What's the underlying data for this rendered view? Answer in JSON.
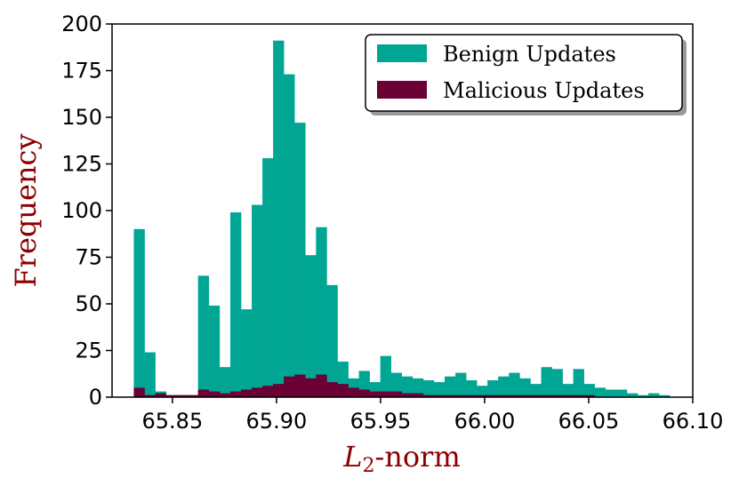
{
  "chart_data": {
    "type": "bar",
    "title": "",
    "xlabel": "L",
    "xlabel_subscript": "2",
    "xlabel_suffix": "-norm",
    "ylabel": "Frequency",
    "xlim": [
      65.821,
      66.1
    ],
    "ylim": [
      0,
      200
    ],
    "xticks": [
      65.85,
      65.9,
      65.95,
      66.0,
      66.05,
      66.1
    ],
    "xtick_labels": [
      "65.85",
      "65.90",
      "65.95",
      "66.00",
      "66.05",
      "66.10"
    ],
    "yticks": [
      0,
      25,
      50,
      75,
      100,
      125,
      150,
      175,
      200
    ],
    "ytick_labels": [
      "0",
      "25",
      "50",
      "75",
      "100",
      "125",
      "150",
      "175",
      "200"
    ],
    "bin_start": 65.8315,
    "bin_width": 0.00515,
    "legend_position": "top-right",
    "grid": false,
    "series": [
      {
        "name": "Benign Updates",
        "color": "#00a693",
        "values": [
          90,
          24,
          3,
          1,
          1,
          1,
          65,
          49,
          16,
          99,
          47,
          103,
          128,
          191,
          173,
          147,
          76,
          91,
          60,
          19,
          10,
          14,
          8,
          22,
          13,
          11,
          10,
          9,
          8,
          11,
          13,
          9,
          6,
          9,
          11,
          13,
          10,
          7,
          16,
          15,
          7,
          15,
          7,
          5,
          4,
          4,
          2,
          1,
          2,
          1
        ]
      },
      {
        "name": "Malicious Updates",
        "color": "#6b0035",
        "values": [
          5,
          1,
          2,
          1,
          1,
          1,
          4,
          3,
          2,
          3,
          4,
          5,
          6,
          7,
          11,
          12,
          10,
          12,
          8,
          7,
          5,
          4,
          3,
          3,
          3,
          2,
          2,
          1,
          1,
          1,
          1,
          1,
          1,
          1,
          1,
          1,
          1,
          1,
          1,
          1,
          1,
          1,
          1,
          0,
          0,
          0,
          0,
          0,
          0,
          0
        ]
      }
    ]
  }
}
